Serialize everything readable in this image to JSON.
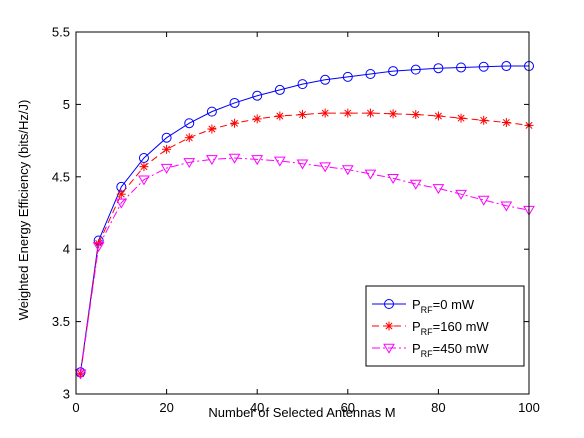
{
  "chart_data": {
    "type": "line",
    "title": "",
    "xlabel": "Number of Selected Antennas M",
    "ylabel": "Weighted Energy Efficiency (bits/Hz/J)",
    "xlim": [
      0,
      100
    ],
    "ylim": [
      3,
      5.5
    ],
    "xticks": [
      0,
      20,
      40,
      60,
      80,
      100
    ],
    "yticks": [
      3,
      3.5,
      4,
      4.5,
      5,
      5.5
    ],
    "grid": false,
    "legend_position": "bottom-right",
    "x": [
      1,
      5,
      10,
      15,
      20,
      25,
      30,
      35,
      40,
      45,
      50,
      55,
      60,
      65,
      70,
      75,
      80,
      85,
      90,
      95,
      100
    ],
    "series": [
      {
        "name": "P_RF=0 mW",
        "label_main": "P",
        "label_sub": "RF",
        "label_rest": "=0 mW",
        "color": "#0000ff",
        "line_style": "solid",
        "marker": "circle",
        "values": [
          3.15,
          4.06,
          4.43,
          4.63,
          4.77,
          4.87,
          4.95,
          5.01,
          5.06,
          5.1,
          5.14,
          5.17,
          5.19,
          5.21,
          5.23,
          5.24,
          5.25,
          5.255,
          5.26,
          5.265,
          5.265
        ]
      },
      {
        "name": "P_RF=160 mW",
        "label_main": "P",
        "label_sub": "RF",
        "label_rest": "=160 mW",
        "color": "#ff0000",
        "line_style": "dashed",
        "marker": "asterisk",
        "values": [
          3.14,
          4.04,
          4.38,
          4.57,
          4.69,
          4.77,
          4.83,
          4.87,
          4.9,
          4.92,
          4.93,
          4.94,
          4.94,
          4.94,
          4.935,
          4.93,
          4.92,
          4.905,
          4.89,
          4.875,
          4.855
        ]
      },
      {
        "name": "P_RF=450 mW",
        "label_main": "P",
        "label_sub": "RF",
        "label_rest": "=450 mW",
        "color": "#ff00ff",
        "line_style": "dashdot",
        "marker": "triangle-down",
        "values": [
          3.14,
          4.02,
          4.32,
          4.48,
          4.56,
          4.6,
          4.62,
          4.63,
          4.62,
          4.61,
          4.59,
          4.57,
          4.55,
          4.52,
          4.49,
          4.45,
          4.42,
          4.38,
          4.34,
          4.3,
          4.27
        ]
      }
    ]
  }
}
